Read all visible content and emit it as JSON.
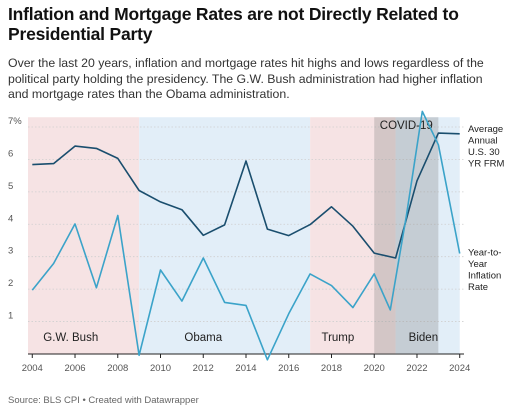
{
  "title": "Inflation and Mortgage Rates are not Directly Related to Presidential Party",
  "subtitle": "Over the last 20 years, inflation and mortgage rates hit highs and lows regardless of the political party holding the presidency. The G.W. Bush administration had higher inflation and mortgage rates than the Obama administration.",
  "footer": "Source: BLS CPI • Created with Datawrapper",
  "chart_data": {
    "type": "line",
    "x": [
      2004,
      2005,
      2006,
      2007,
      2008,
      2009,
      2010,
      2011,
      2012,
      2013,
      2014,
      2015,
      2016,
      2017,
      2018,
      2019,
      2020,
      2021,
      2022,
      2023,
      2024
    ],
    "series": [
      {
        "name": "Average Annual U.S. 30 YR FRM",
        "label_lines": [
          "Average",
          "Annual",
          "U.S. 30",
          "YR FRM"
        ],
        "color": "#1a4e6e",
        "x": [
          2004,
          2005,
          2006,
          2007,
          2008,
          2009,
          2010,
          2011,
          2012,
          2013,
          2014,
          2015,
          2016,
          2017,
          2018,
          2019,
          2020,
          2021,
          2022,
          2023,
          2024
        ],
        "values": [
          5.84,
          5.87,
          6.41,
          6.34,
          6.03,
          5.04,
          4.69,
          4.45,
          3.66,
          3.98,
          5.95,
          3.85,
          3.65,
          3.99,
          4.54,
          3.94,
          3.11,
          2.96,
          5.34,
          6.81,
          6.79
        ]
      },
      {
        "name": "Year-to-Year Inflation Rate",
        "label_lines": [
          "Year-to-",
          "Year",
          "Inflation",
          "Rate"
        ],
        "color": "#3ba3c9",
        "x": [
          2004,
          2005,
          2006,
          2007,
          2008,
          2009,
          2010,
          2011,
          2012,
          2013,
          2014,
          2015,
          2016,
          2017,
          2018,
          2019,
          2020,
          2020.75,
          2021.5,
          2022.25,
          2023,
          2024
        ],
        "values": [
          1.97,
          2.79,
          4.01,
          2.04,
          4.27,
          -0.04,
          2.59,
          1.63,
          2.96,
          1.59,
          1.5,
          -0.18,
          1.24,
          2.47,
          2.11,
          1.43,
          2.47,
          1.36,
          4.25,
          7.48,
          6.45,
          3.1
        ]
      }
    ],
    "periods": [
      {
        "label": "G.W. Bush",
        "start": 2004,
        "end": 2009,
        "color": "#f6e3e4"
      },
      {
        "label": "Obama",
        "start": 2009,
        "end": 2017,
        "color": "#e2eef8"
      },
      {
        "label": "Trump",
        "start": 2017,
        "end": 2021,
        "color": "#f6e3e4"
      },
      {
        "label": "Biden",
        "start": 2021,
        "end": 2024,
        "color": "#e2eef8"
      }
    ],
    "annotation": {
      "label": "COVID-19",
      "start": 2020,
      "end": 2023,
      "color": "#8a8a8a"
    },
    "y_ticks": [
      "",
      "1",
      "2",
      "3",
      "4",
      "5",
      "6",
      "7%"
    ],
    "x_ticks": [
      "2004",
      "2006",
      "2008",
      "2010",
      "2012",
      "2014",
      "2016",
      "2018",
      "2020",
      "2022",
      "2024"
    ],
    "ylim": [
      0,
      7.4
    ],
    "xlim": [
      2003.8,
      2024.2
    ],
    "grid": true,
    "xlabel": "",
    "ylabel": ""
  }
}
